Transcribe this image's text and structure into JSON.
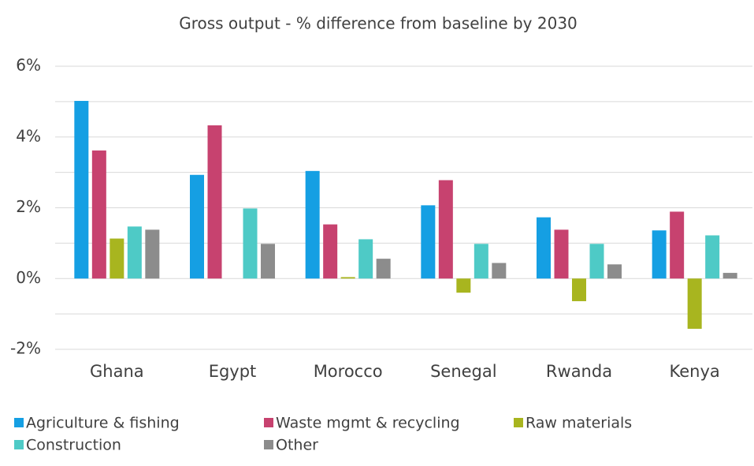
{
  "chart_data": {
    "type": "bar",
    "title": "Gross output - % difference from baseline by 2030",
    "categories": [
      "Ghana",
      "Egypt",
      "Morocco",
      "Senegal",
      "Rwanda",
      "Kenya"
    ],
    "series": [
      {
        "name": "Agriculture & fishing",
        "color": "#159fe3",
        "values": [
          5.02,
          2.93,
          3.04,
          2.07,
          1.73,
          1.36
        ]
      },
      {
        "name": "Waste mgmt & recycling",
        "color": "#c7426f",
        "values": [
          3.62,
          4.33,
          1.53,
          2.78,
          1.38,
          1.89
        ]
      },
      {
        "name": "Raw materials",
        "color": "#a8b51f",
        "values": [
          1.13,
          0,
          0.04,
          -0.4,
          -0.64,
          -1.42
        ]
      },
      {
        "name": "Construction",
        "color": "#4ecac6",
        "values": [
          1.47,
          1.98,
          1.11,
          0.98,
          0.98,
          1.22
        ]
      },
      {
        "name": "Other",
        "color": "#8c8c8c",
        "values": [
          1.38,
          0.98,
          0.56,
          0.44,
          0.4,
          0.16
        ]
      }
    ],
    "ylim": [
      -2,
      6
    ],
    "yticks": [
      {
        "value": -2,
        "label": "-2%"
      },
      {
        "value": 0,
        "label": "0%"
      },
      {
        "value": 2,
        "label": "2%"
      },
      {
        "value": 4,
        "label": "4%"
      },
      {
        "value": 6,
        "label": "6%"
      }
    ],
    "minor_yticks": [
      -1,
      1,
      3,
      5
    ],
    "grid": true
  }
}
